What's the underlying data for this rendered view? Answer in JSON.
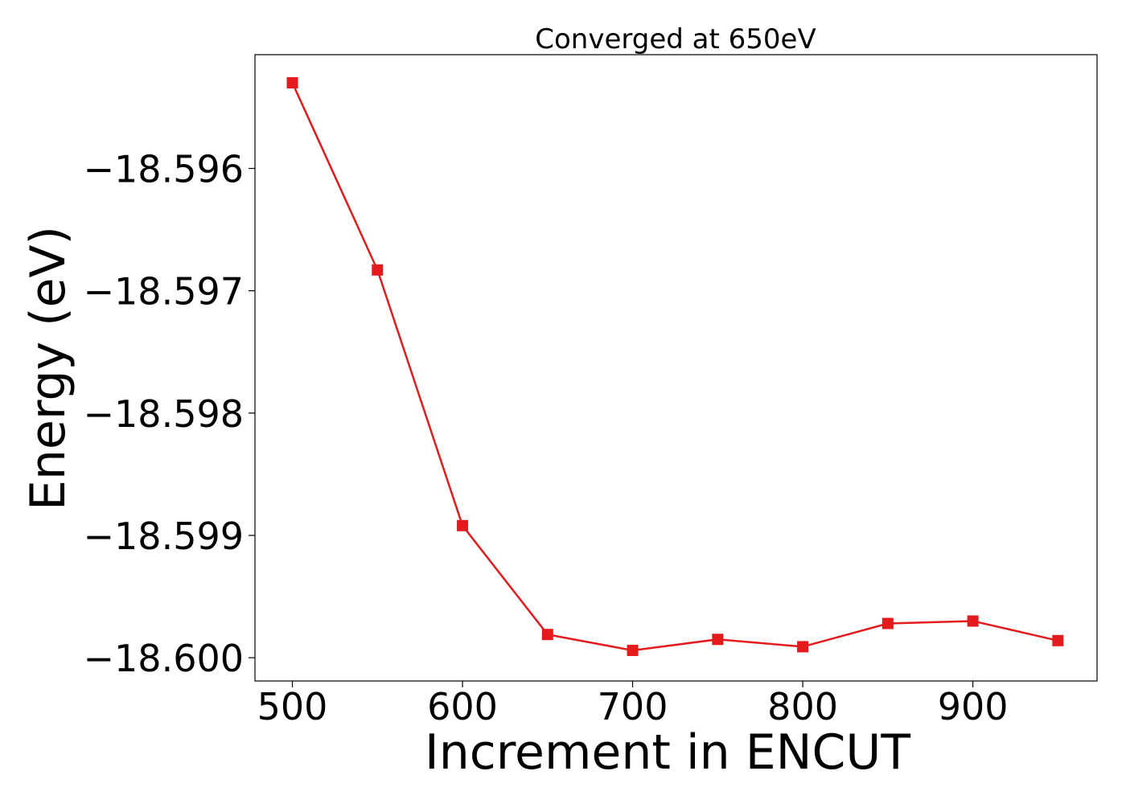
{
  "chart_data": {
    "type": "line",
    "title": "Converged at 650eV",
    "xlabel": "Increment in ENCUT",
    "ylabel": "Energy (eV)",
    "x": [
      500,
      550,
      600,
      650,
      700,
      750,
      800,
      850,
      900,
      950
    ],
    "series": [
      {
        "values": [
          -18.5953,
          -18.59683,
          -18.59892,
          -18.59981,
          -18.59994,
          -18.59985,
          -18.59991,
          -18.59972,
          -18.5997,
          -18.59986
        ],
        "color": "#e41a1c",
        "marker": "square"
      }
    ],
    "xlim": [
      478,
      973
    ],
    "ylim": [
      -18.60019,
      -18.59507
    ],
    "xticks": [
      500,
      600,
      700,
      800,
      900
    ],
    "xtick_labels": [
      "500",
      "600",
      "700",
      "800",
      "900"
    ],
    "yticks": [
      -18.596,
      -18.597,
      -18.598,
      -18.599,
      -18.6
    ],
    "ytick_labels": [
      "−18.596",
      "−18.597",
      "−18.598",
      "−18.599",
      "−18.600"
    ],
    "grid": false,
    "legend": "none"
  }
}
